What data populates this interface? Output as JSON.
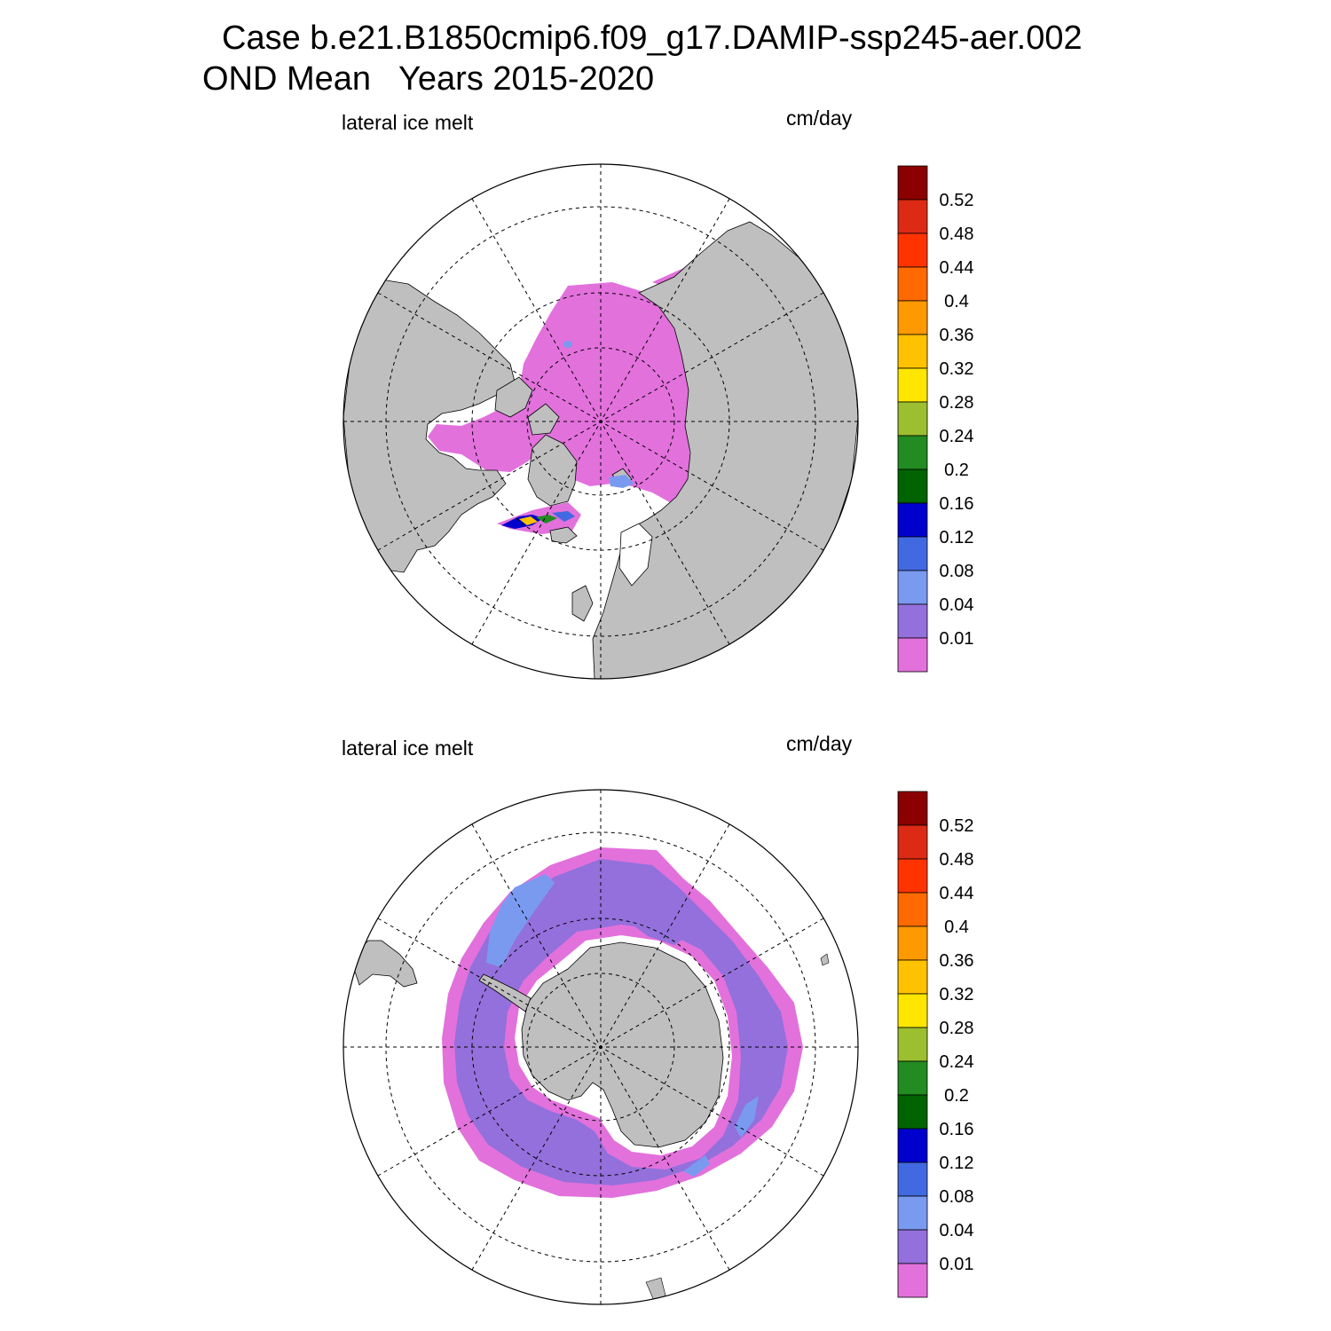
{
  "title": {
    "line1": "Case b.e21.B1850cmip6.f09_g17.DAMIP-ssp245-aer.002",
    "line2": "OND Mean   Years 2015-2020"
  },
  "panels": [
    {
      "id": "north",
      "left_label": "lateral ice melt",
      "right_label": "cm/day",
      "hemisphere": "Northern Hemisphere polar stereographic"
    },
    {
      "id": "south",
      "left_label": "lateral ice melt",
      "right_label": "cm/day",
      "hemisphere": "Southern Hemisphere polar stereographic"
    }
  ],
  "colorbar": {
    "labels": [
      "0.52",
      "0.48",
      "0.44",
      "0.4",
      "0.36",
      "0.32",
      "0.28",
      "0.24",
      "0.2",
      "0.16",
      "0.12",
      "0.08",
      "0.04",
      "0.01"
    ],
    "colors_top_to_bottom": [
      "#8b0000",
      "#dc2a14",
      "#ff3300",
      "#ff6a00",
      "#ff9900",
      "#ffc200",
      "#ffe600",
      "#9bbf2e",
      "#228b22",
      "#006400",
      "#0000cd",
      "#4169e1",
      "#7a9af0",
      "#9370db",
      "#e271dc"
    ]
  },
  "colors": {
    "land": "#bfbfbf",
    "ice_low": "#e271dc",
    "ice_002": "#9370db",
    "ice_006": "#7a9af0",
    "ice_010": "#4169e1"
  }
}
